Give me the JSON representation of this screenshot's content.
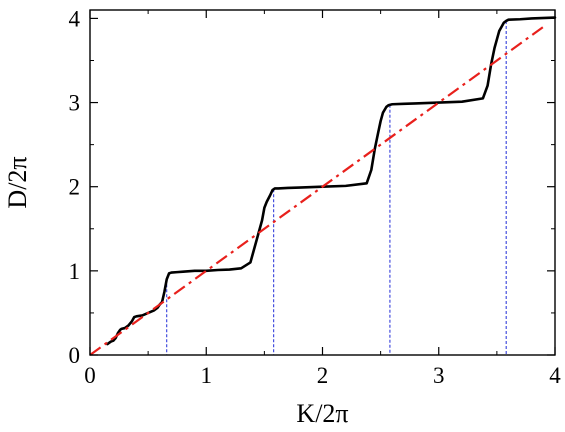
{
  "chart_data": {
    "type": "line",
    "title": "",
    "xlabel": "K/2π",
    "ylabel": "D/2π",
    "xlim": [
      0,
      4
    ],
    "ylim": [
      0,
      4.1
    ],
    "xticks": [
      0,
      1,
      2,
      3,
      4
    ],
    "yticks": [
      0,
      1,
      2,
      3,
      4
    ],
    "grid": false,
    "legend": "none",
    "series": [
      {
        "style": "solid",
        "color": "#000000",
        "x": [
          0.15,
          0.18,
          0.2,
          0.22,
          0.24,
          0.26,
          0.27,
          0.3,
          0.33,
          0.36,
          0.38,
          0.4,
          0.45,
          0.5,
          0.55,
          0.58,
          0.6,
          0.62,
          0.64,
          0.66,
          0.68,
          0.7,
          0.75,
          0.8,
          0.9,
          1.0,
          1.1,
          1.2,
          1.3,
          1.38,
          1.42,
          1.45,
          1.48,
          1.5,
          1.52,
          1.55,
          1.57,
          1.59,
          1.62,
          1.7,
          1.8,
          2.0,
          2.2,
          2.38,
          2.42,
          2.45,
          2.48,
          2.5,
          2.52,
          2.55,
          2.57,
          2.6,
          2.7,
          2.8,
          3.0,
          3.2,
          3.38,
          3.42,
          3.45,
          3.48,
          3.5,
          3.52,
          3.54,
          3.56,
          3.58,
          3.6,
          3.7,
          3.8,
          4.0
        ],
        "y": [
          0.13,
          0.16,
          0.17,
          0.2,
          0.26,
          0.3,
          0.31,
          0.32,
          0.35,
          0.4,
          0.45,
          0.46,
          0.47,
          0.5,
          0.53,
          0.56,
          0.6,
          0.63,
          0.75,
          0.9,
          0.97,
          0.98,
          0.985,
          0.99,
          1.0,
          1.0,
          1.01,
          1.015,
          1.03,
          1.1,
          1.3,
          1.45,
          1.6,
          1.75,
          1.82,
          1.9,
          1.96,
          1.98,
          1.98,
          1.985,
          1.99,
          2.0,
          2.01,
          2.04,
          2.2,
          2.45,
          2.65,
          2.78,
          2.88,
          2.95,
          2.97,
          2.98,
          2.985,
          2.99,
          3.0,
          3.01,
          3.05,
          3.2,
          3.45,
          3.65,
          3.75,
          3.85,
          3.9,
          3.95,
          3.97,
          3.985,
          3.99,
          4.0,
          4.01
        ]
      },
      {
        "style": "dash-dot",
        "color": "#e8201c",
        "x": [
          0.0,
          3.9
        ],
        "y": [
          0.0,
          3.9
        ]
      }
    ],
    "vlines": {
      "style": "dashed",
      "color": "#1f2bd8",
      "x": [
        0.66,
        1.58,
        2.58,
        3.58
      ]
    }
  }
}
